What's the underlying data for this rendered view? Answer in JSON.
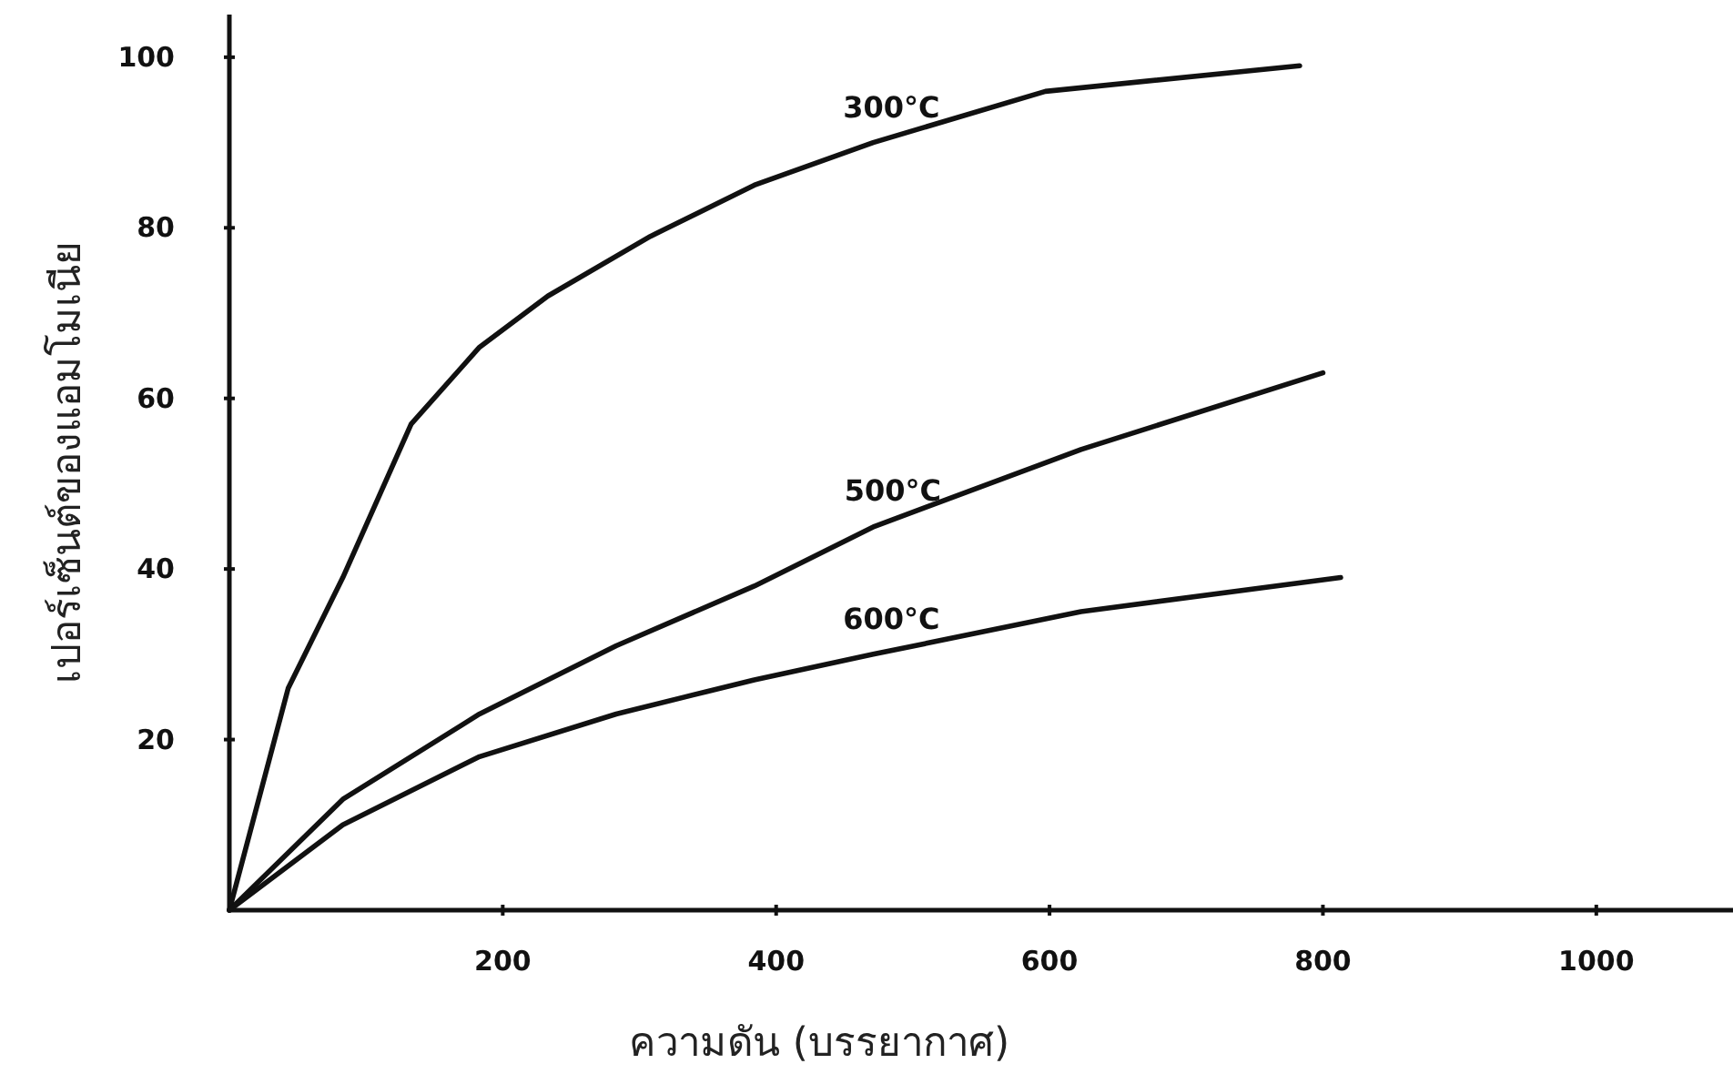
{
  "chart_data": {
    "type": "line",
    "xlabel": "ความดัน (บรรยากาศ)",
    "ylabel": "เปอร์เซ็นต์ของแอมโมเนีย",
    "xlim": [
      0,
      1100
    ],
    "ylim": [
      0,
      105
    ],
    "xticks": [
      200,
      400,
      600,
      800,
      1000
    ],
    "yticks": [
      20,
      40,
      60,
      80,
      100
    ],
    "grid": false,
    "legend": false,
    "marker": "none",
    "line_style": "solid",
    "series": [
      {
        "name": "300°C",
        "color": "#111111",
        "x": [
          0,
          43,
          83,
          133,
          183,
          233,
          308,
          384,
          471,
          597,
          783
        ],
        "values": [
          0,
          26,
          39,
          57,
          66,
          72,
          79,
          85,
          90,
          96,
          99
        ]
      },
      {
        "name": "500°C",
        "color": "#111111",
        "x": [
          0,
          83,
          183,
          283,
          384,
          472,
          623,
          800
        ],
        "values": [
          0,
          13,
          23,
          31,
          38,
          45,
          54,
          63
        ]
      },
      {
        "name": "600°C",
        "color": "#111111",
        "x": [
          0,
          83,
          183,
          283,
          384,
          471,
          623,
          813
        ],
        "values": [
          0,
          10,
          18,
          23,
          27,
          30,
          35,
          39
        ]
      }
    ]
  }
}
